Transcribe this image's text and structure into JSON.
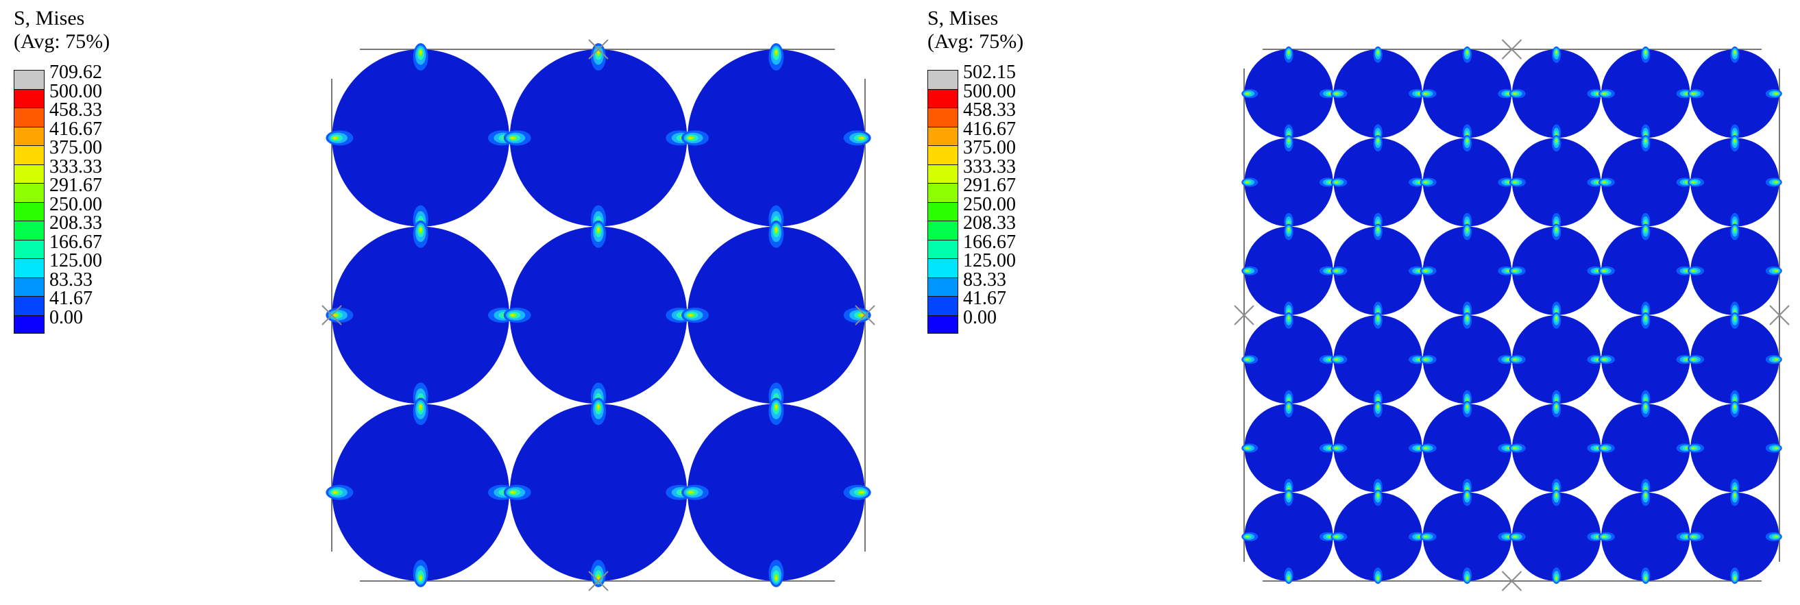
{
  "legend_colors": [
    "#c8c8c8",
    "#ff0000",
    "#ff5a00",
    "#ffa500",
    "#ffd900",
    "#d6ff00",
    "#8cff00",
    "#2bff00",
    "#00ff4a",
    "#00ffaa",
    "#00e6ff",
    "#0096ff",
    "#0046ff",
    "#0a00ff"
  ],
  "fill_color": "#0a1bd4",
  "left_panel": {
    "legend": {
      "title_line1": "S, Mises",
      "title_line2": "(Avg: 75%)",
      "labels": [
        "709.62",
        "500.00",
        "458.33",
        "416.67",
        "375.00",
        "333.33",
        "291.67",
        "250.00",
        "208.33",
        "166.67",
        "125.00",
        "83.33",
        "41.67",
        "0.00"
      ]
    },
    "grid": {
      "rows": 3,
      "cols": 3
    }
  },
  "right_panel": {
    "legend": {
      "title_line1": "S, Mises",
      "title_line2": "(Avg: 75%)",
      "labels": [
        "502.15",
        "500.00",
        "458.33",
        "416.67",
        "375.00",
        "333.33",
        "291.67",
        "250.00",
        "208.33",
        "166.67",
        "125.00",
        "83.33",
        "41.67",
        "0.00"
      ]
    },
    "grid": {
      "rows": 6,
      "cols": 6
    }
  }
}
